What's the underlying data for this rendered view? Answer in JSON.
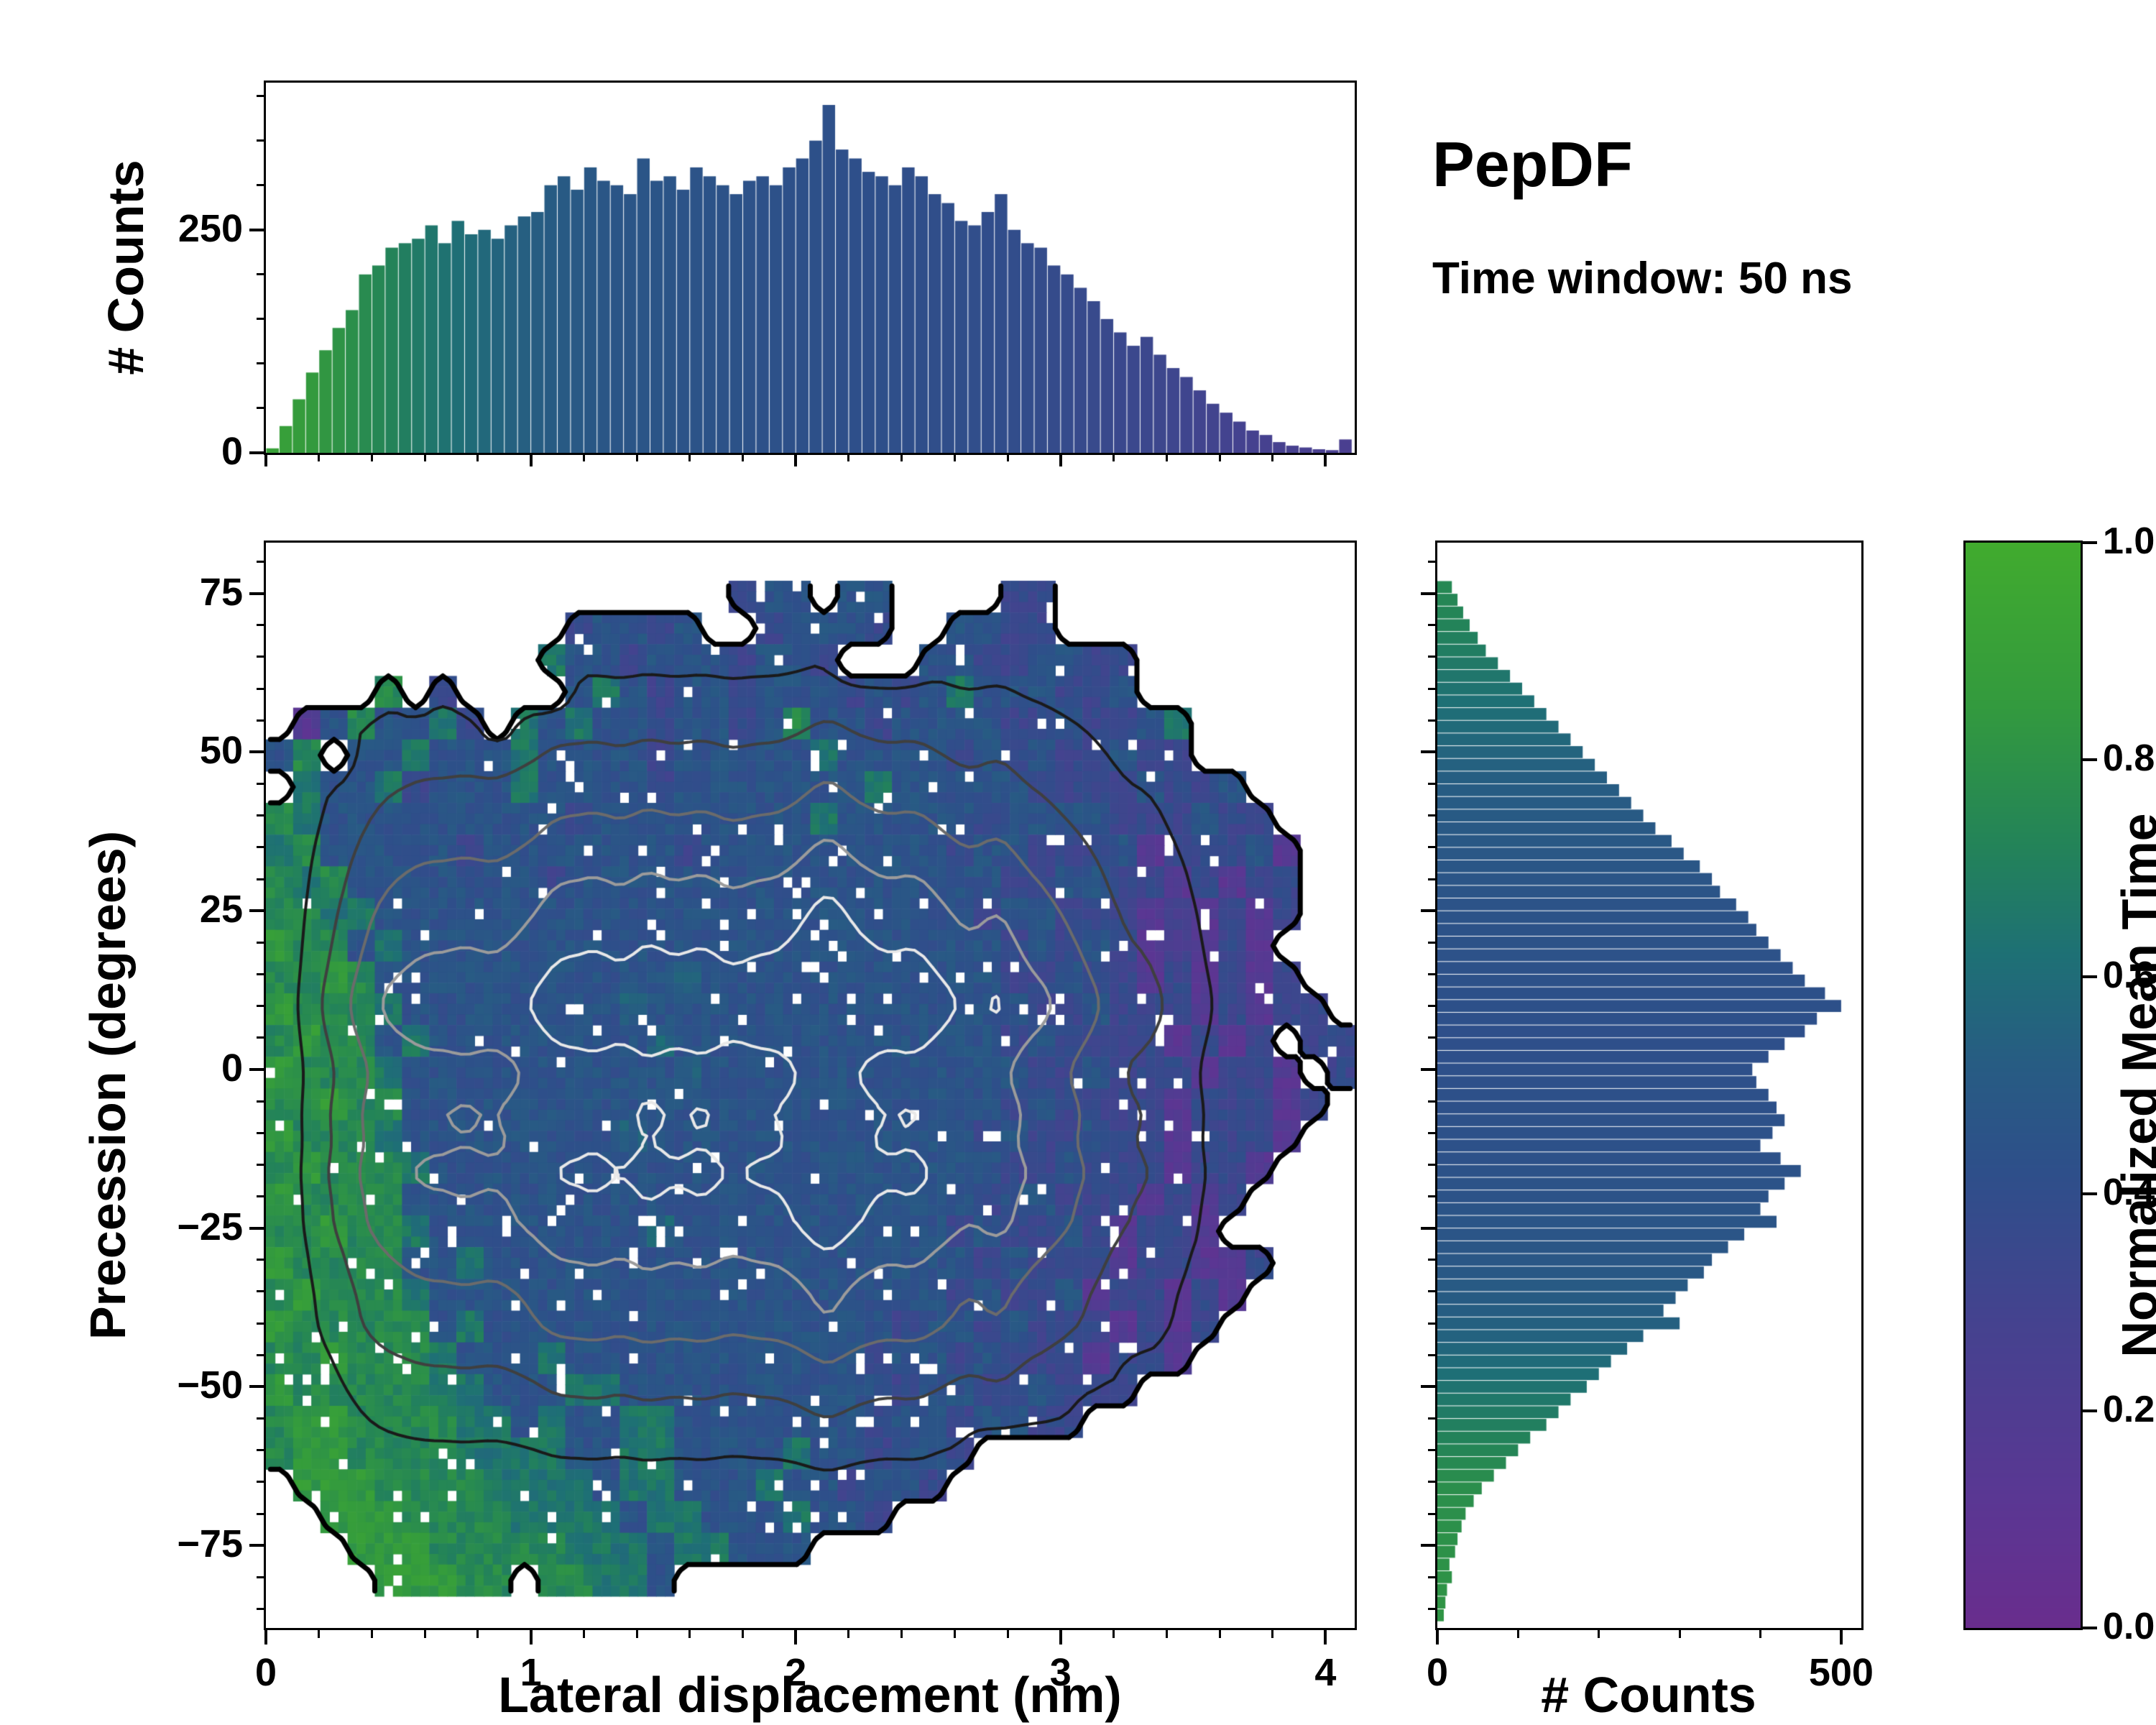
{
  "title": {
    "name": "PepDF",
    "subtitle": "Time window: 50 ns"
  },
  "colors": {
    "background": "#ffffff",
    "axis": "#000000",
    "cmap_stops": [
      [
        0.0,
        "#692d8d"
      ],
      [
        0.12,
        "#5a3793"
      ],
      [
        0.28,
        "#45428f"
      ],
      [
        0.42,
        "#2e4f8a"
      ],
      [
        0.52,
        "#275c83"
      ],
      [
        0.62,
        "#1e7075"
      ],
      [
        0.72,
        "#238359"
      ],
      [
        0.85,
        "#339a3e"
      ],
      [
        1.0,
        "#41ab2e"
      ]
    ],
    "contour_boundary": "#000000",
    "contour_level_colors": [
      "#1a1a1a",
      "#3f3f3f",
      "#6b6b6b",
      "#9b9b9b",
      "#e8e8e8"
    ]
  },
  "chart_data": [
    {
      "type": "bar",
      "role": "top-histogram",
      "ylabel": "# Counts",
      "x_range": [
        0,
        4.11
      ],
      "y_range": [
        0,
        415
      ],
      "yticks": [
        0,
        250
      ],
      "ytick_labels": [
        "0",
        "250"
      ],
      "y_minor_step": 50,
      "x_start": 0,
      "bin_width": 0.05,
      "values": [
        5,
        30,
        60,
        90,
        115,
        140,
        160,
        200,
        210,
        230,
        235,
        240,
        255,
        235,
        260,
        245,
        250,
        240,
        255,
        265,
        270,
        300,
        310,
        295,
        320,
        305,
        300,
        290,
        330,
        305,
        310,
        295,
        320,
        310,
        300,
        290,
        305,
        310,
        300,
        320,
        330,
        350,
        390,
        340,
        330,
        315,
        310,
        300,
        320,
        310,
        290,
        280,
        260,
        255,
        270,
        290,
        250,
        235,
        230,
        210,
        200,
        185,
        170,
        150,
        135,
        120,
        130,
        110,
        95,
        85,
        70,
        55,
        45,
        35,
        25,
        20,
        12,
        8,
        6,
        4,
        3,
        15
      ],
      "color_value_stops": [
        [
          0,
          0.92
        ],
        [
          0.3,
          0.8
        ],
        [
          0.6,
          0.66
        ],
        [
          0.9,
          0.55
        ],
        [
          1.3,
          0.47
        ],
        [
          2.0,
          0.43
        ],
        [
          2.8,
          0.4
        ],
        [
          3.3,
          0.34
        ],
        [
          3.7,
          0.28
        ],
        [
          4.1,
          0.24
        ]
      ]
    },
    {
      "type": "heatmap",
      "role": "joint-distribution",
      "xlabel": "Lateral displacement (nm)",
      "ylabel": "Precession (degrees)",
      "x_range": [
        0,
        4.11
      ],
      "y_range": [
        -88,
        83
      ],
      "xticks": [
        0,
        1,
        2,
        3,
        4
      ],
      "xtick_labels": [
        "0",
        "1",
        "2",
        "3",
        "4"
      ],
      "x_minor_step": 0.2,
      "yticks": [
        75,
        50,
        25,
        0,
        -25,
        -50,
        -75
      ],
      "ytick_labels": [
        "75",
        "50",
        "25",
        "0",
        "−25",
        "−50",
        "−75"
      ],
      "y_minor_step": 5,
      "grid_x0": 0,
      "grid_cell_x": 0.10275,
      "grid_y_top": 77,
      "grid_cell_y": 5,
      "value_encoding": "char 0-9 maps to normalized mean time 0.05-0.95, dot is empty bin",
      "rows": [
        ".................344.44....33...........",
        "...........34434..34443..4433...........",
        "..........64434443443...44334433........",
        "....7.3....464344344434346444334........",
        ".1474463.6464434434744344443343346......",
        "47.4464446444434444464444343433433......",
        ".64463444644443444444464444433334334....",
        "7644444444434444444464444434444333433...",
        "67444443444444434444444443443334133341..",
        "76744444443444444444444444433443313133..",
        "77664444444444444444444444344333121313..",
        "8774644444444444444444444443434312131...",
        "77874444444444454444444444433433131313..",
        "877764444444454444444444444433433313133.",
        "7877464444444454444444444443433331313.33",
        "87776444444444454444444444443343331331.3",
        "778774444444444444444444444343333133313.",
        "87776444444445444444444444343343313331..",
        "7877764444444444444444444443343331331...",
        "877774444444444444444444443443331313....",
        "77877644444444544444444443433431331.....",
        "8777744644444444444444444434333133113...",
        "787776444444444444444444434334133131....",
        "87777746444444444444444344343331313.....",
        "7787776444644444444444344343331331......",
        "87777766444664444444444344334333........",
        "788777766464466444444434434433..........",
        "78877776666446644446443443..............",
        ".888777766664664446443443...............",
        "..888777766664664446443.................",
        "...88877777666466444....................",
        "....88877.77664........................."
      ],
      "contour_levels": [
        0.16,
        0.3,
        0.45,
        0.6,
        0.75
      ]
    },
    {
      "type": "bar",
      "role": "right-histogram",
      "xlabel": "# Counts",
      "x_range": [
        0,
        525
      ],
      "xticks": [
        0,
        500
      ],
      "xtick_labels": [
        "0",
        "500"
      ],
      "x_minor_step": 100,
      "y_start": -87,
      "bin_width": 2,
      "values": [
        8,
        10,
        12,
        18,
        15,
        22,
        25,
        30,
        35,
        45,
        55,
        70,
        85,
        100,
        115,
        135,
        150,
        165,
        185,
        200,
        215,
        235,
        255,
        300,
        280,
        295,
        310,
        330,
        340,
        360,
        380,
        420,
        400,
        410,
        430,
        450,
        425,
        400,
        415,
        430,
        420,
        410,
        395,
        390,
        410,
        430,
        455,
        470,
        500,
        480,
        455,
        440,
        425,
        410,
        395,
        385,
        370,
        350,
        340,
        325,
        305,
        290,
        270,
        255,
        240,
        225,
        210,
        195,
        180,
        165,
        150,
        135,
        120,
        105,
        90,
        75,
        60,
        50,
        40,
        32,
        25,
        18
      ],
      "color_value_stops": [
        [
          -87,
          0.82
        ],
        [
          -65,
          0.78
        ],
        [
          -52,
          0.66
        ],
        [
          -42,
          0.55
        ],
        [
          -30,
          0.48
        ],
        [
          -15,
          0.44
        ],
        [
          5,
          0.42
        ],
        [
          25,
          0.45
        ],
        [
          45,
          0.52
        ],
        [
          58,
          0.62
        ],
        [
          70,
          0.72
        ],
        [
          77,
          0.75
        ]
      ]
    },
    {
      "type": "colorbar",
      "label": "Normalized Mean Time",
      "range": [
        0,
        1
      ],
      "ticks": [
        0,
        0.2,
        0.4,
        0.6,
        0.8,
        1.0
      ],
      "tick_labels": [
        "0.0",
        "0.2",
        "0.4",
        "0.6",
        "0.8",
        "1.0"
      ]
    }
  ]
}
